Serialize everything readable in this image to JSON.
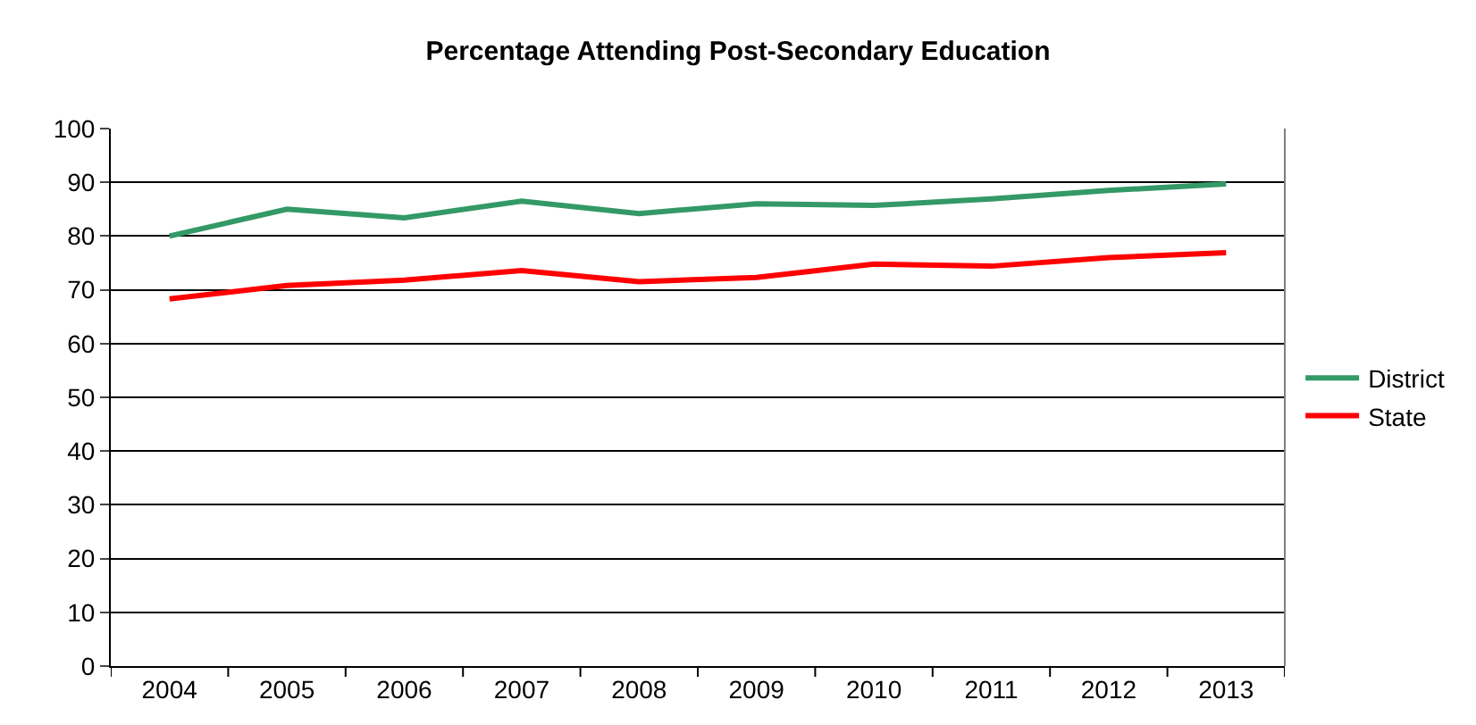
{
  "chart_data": {
    "type": "line",
    "title": "Percentage Attending Post-Secondary Education",
    "categories": [
      "2004",
      "2005",
      "2006",
      "2007",
      "2008",
      "2009",
      "2010",
      "2011",
      "2012",
      "2013"
    ],
    "series": [
      {
        "name": "District",
        "color": "#339966",
        "values": [
          80,
          85,
          83.4,
          86.5,
          84.2,
          86,
          85.7,
          86.9,
          88.5,
          89.7
        ]
      },
      {
        "name": "State",
        "color": "#ff0000",
        "values": [
          68.3,
          70.8,
          71.8,
          73.6,
          71.5,
          72.3,
          74.8,
          74.4,
          76,
          76.9
        ]
      }
    ],
    "ylim": [
      0,
      100
    ],
    "yticks": [
      0,
      10,
      20,
      30,
      40,
      50,
      60,
      70,
      80,
      90,
      100
    ],
    "grid": "y",
    "legend": "right",
    "marker": "none",
    "line_style": "solid"
  }
}
